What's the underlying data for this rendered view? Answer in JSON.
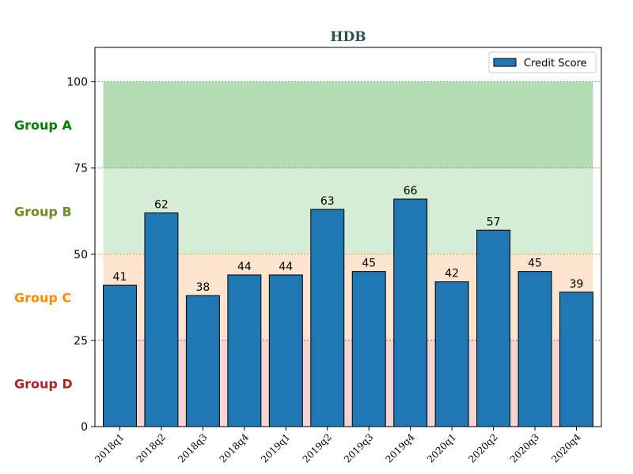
{
  "chart_data": {
    "type": "bar",
    "title": "HDB",
    "title_color": "#2f4f4f",
    "categories": [
      "2018q1",
      "2018q2",
      "2018q3",
      "2018q4",
      "2019q1",
      "2019q2",
      "2019q3",
      "2019q4",
      "2020q1",
      "2020q2",
      "2020q3",
      "2020q4"
    ],
    "series": [
      {
        "name": "Credit Score",
        "values": [
          41,
          62,
          38,
          44,
          44,
          63,
          45,
          66,
          42,
          57,
          45,
          39
        ],
        "color": "#1f77b4"
      }
    ],
    "ylim": [
      0,
      110
    ],
    "yticks": [
      0,
      25,
      50,
      75,
      100
    ],
    "legend_position": "top-right",
    "grid": false,
    "bands": [
      {
        "label": "Group A",
        "from": 75,
        "to": 100,
        "color": "#2ca02c",
        "label_color": "#008000"
      },
      {
        "label": "Group B",
        "from": 50,
        "to": 100,
        "color": "#2ca02c",
        "label_color": "#6b8e23"
      },
      {
        "label": "Group C",
        "from": 25,
        "to": 50,
        "color": "#ff7f0e",
        "label_color": "#ff8c00"
      },
      {
        "label": "Group D",
        "from": 0,
        "to": 25,
        "color": "#d62728",
        "label_color": "#b22222"
      }
    ],
    "threshold_lines": [
      {
        "value": 100,
        "color": "#2ca02c"
      },
      {
        "value": 75,
        "color": "#6b8e23"
      },
      {
        "value": 50,
        "color": "#ff8c00"
      },
      {
        "value": 25,
        "color": "#b22222"
      }
    ]
  }
}
